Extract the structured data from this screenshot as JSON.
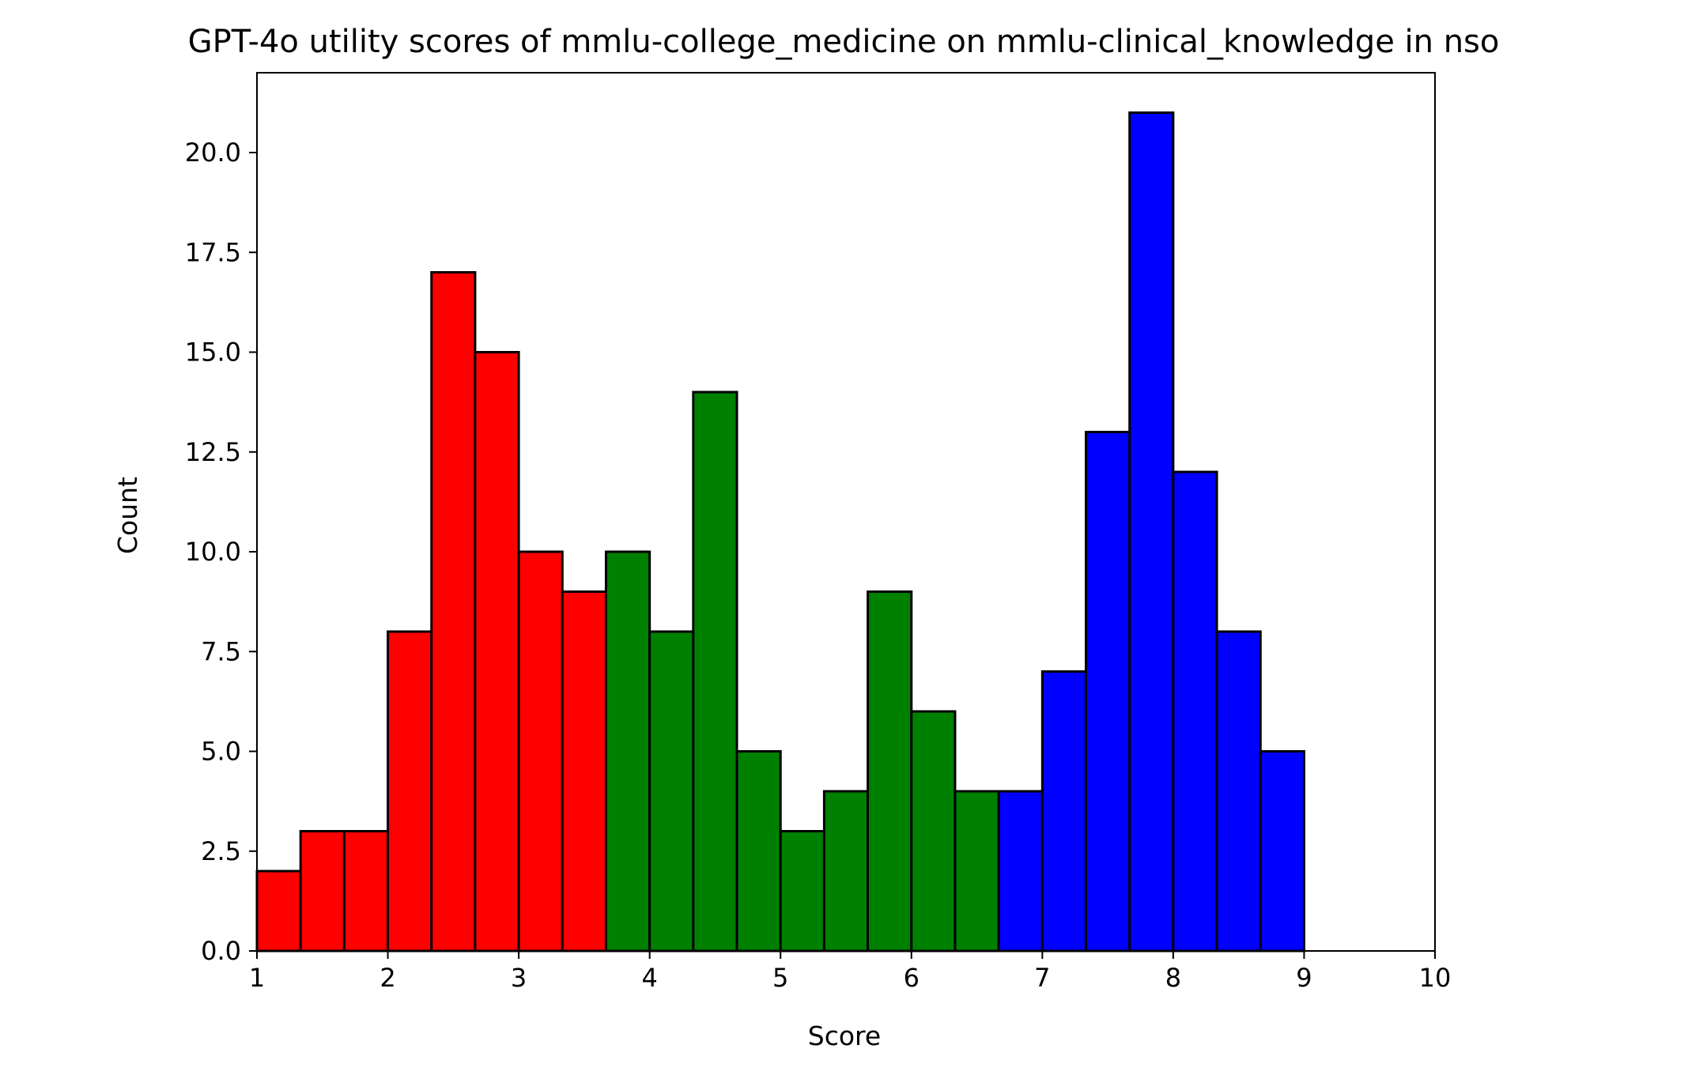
{
  "chart_data": {
    "type": "bar",
    "title": "GPT-4o utility scores of mmlu-college_medicine on mmlu-clinical_knowledge in nso",
    "xlabel": "Score",
    "ylabel": "Count",
    "xlim": [
      1,
      10
    ],
    "ylim": [
      0,
      22
    ],
    "grid": false,
    "legend": "none",
    "x_ticks": [
      {
        "value": 1,
        "label": "1"
      },
      {
        "value": 2,
        "label": "2"
      },
      {
        "value": 3,
        "label": "3"
      },
      {
        "value": 4,
        "label": "4"
      },
      {
        "value": 5,
        "label": "5"
      },
      {
        "value": 6,
        "label": "6"
      },
      {
        "value": 7,
        "label": "7"
      },
      {
        "value": 8,
        "label": "8"
      },
      {
        "value": 9,
        "label": "9"
      },
      {
        "value": 10,
        "label": "10"
      }
    ],
    "y_ticks": [
      {
        "value": 0,
        "label": "0.0"
      },
      {
        "value": 2.5,
        "label": "2.5"
      },
      {
        "value": 5,
        "label": "5.0"
      },
      {
        "value": 7.5,
        "label": "7.5"
      },
      {
        "value": 10,
        "label": "10.0"
      },
      {
        "value": 12.5,
        "label": "12.5"
      },
      {
        "value": 15,
        "label": "15.0"
      },
      {
        "value": 17.5,
        "label": "17.5"
      },
      {
        "value": 20,
        "label": "20.0"
      }
    ],
    "bin_edges": [
      1,
      1.3333,
      1.6667,
      2,
      2.3333,
      2.6667,
      3,
      3.3333,
      3.6667,
      4,
      4.3333,
      4.6667,
      5,
      5.3333,
      5.6667,
      6,
      6.3333,
      6.6667,
      7,
      7.3333,
      7.6667,
      8,
      8.3333,
      8.6667,
      9,
      9.3333,
      9.6667,
      10
    ],
    "values": [
      2,
      3,
      3,
      8,
      17,
      15,
      10,
      9,
      10,
      8,
      14,
      5,
      3,
      4,
      9,
      6,
      4,
      4,
      7,
      13,
      21,
      12,
      8,
      5,
      0,
      0,
      0
    ],
    "bar_colors": [
      "#ff0000",
      "#ff0000",
      "#ff0000",
      "#ff0000",
      "#ff0000",
      "#ff0000",
      "#ff0000",
      "#ff0000",
      "#008000",
      "#008000",
      "#008000",
      "#008000",
      "#008000",
      "#008000",
      "#008000",
      "#008000",
      "#008000",
      "#0000ff",
      "#0000ff",
      "#0000ff",
      "#0000ff",
      "#0000ff",
      "#0000ff",
      "#0000ff",
      "#0000ff",
      "#0000ff",
      "#0000ff"
    ],
    "edge_color": "#000000"
  }
}
